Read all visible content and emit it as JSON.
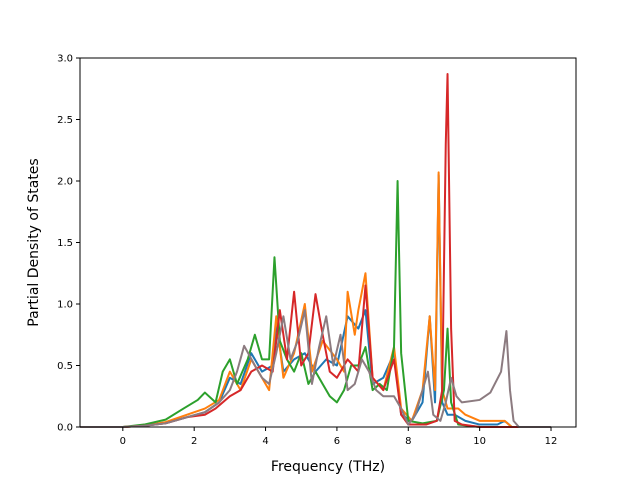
{
  "chart_data": {
    "type": "line",
    "xlabel": "Frequency (THz)",
    "ylabel": "Partial Density of States",
    "xlim": [
      -1.2,
      12.7
    ],
    "ylim": [
      0,
      3.0
    ],
    "xticks": [
      0,
      2,
      4,
      6,
      8,
      10,
      12
    ],
    "yticks": [
      0.0,
      0.5,
      1.0,
      1.5,
      2.0,
      2.5,
      3.0
    ],
    "xtick_labels": [
      "0",
      "2",
      "4",
      "6",
      "8",
      "10",
      "12"
    ],
    "ytick_labels": [
      "0.0",
      "0.5",
      "1.0",
      "1.5",
      "2.0",
      "2.5",
      "3.0"
    ],
    "grid": false,
    "series": [
      {
        "color": "#1f77b4",
        "points": [
          [
            -1.2,
            0
          ],
          [
            0,
            0
          ],
          [
            0.6,
            0.01
          ],
          [
            1.2,
            0.03
          ],
          [
            1.8,
            0.08
          ],
          [
            2.3,
            0.12
          ],
          [
            2.7,
            0.2
          ],
          [
            3.0,
            0.4
          ],
          [
            3.3,
            0.35
          ],
          [
            3.6,
            0.6
          ],
          [
            3.9,
            0.45
          ],
          [
            4.2,
            0.5
          ],
          [
            4.3,
            0.85
          ],
          [
            4.5,
            0.45
          ],
          [
            4.8,
            0.55
          ],
          [
            5.1,
            0.6
          ],
          [
            5.4,
            0.45
          ],
          [
            5.7,
            0.55
          ],
          [
            6.0,
            0.5
          ],
          [
            6.3,
            0.9
          ],
          [
            6.6,
            0.8
          ],
          [
            6.8,
            0.95
          ],
          [
            7.0,
            0.35
          ],
          [
            7.3,
            0.4
          ],
          [
            7.6,
            0.6
          ],
          [
            7.8,
            0.1
          ],
          [
            8.1,
            0.05
          ],
          [
            8.4,
            0.2
          ],
          [
            8.6,
            0.9
          ],
          [
            8.75,
            0.2
          ],
          [
            8.85,
            2.05
          ],
          [
            8.95,
            0.2
          ],
          [
            9.1,
            0.1
          ],
          [
            9.3,
            0.1
          ],
          [
            9.6,
            0.05
          ],
          [
            10.0,
            0.02
          ],
          [
            10.5,
            0.02
          ],
          [
            10.7,
            0.05
          ],
          [
            10.9,
            0
          ],
          [
            12.0,
            0
          ]
        ]
      },
      {
        "color": "#ff7f0e",
        "points": [
          [
            -1.2,
            0
          ],
          [
            0,
            0
          ],
          [
            0.6,
            0.01
          ],
          [
            1.2,
            0.04
          ],
          [
            1.8,
            0.1
          ],
          [
            2.3,
            0.15
          ],
          [
            2.7,
            0.22
          ],
          [
            3.0,
            0.45
          ],
          [
            3.3,
            0.3
          ],
          [
            3.6,
            0.55
          ],
          [
            3.8,
            0.45
          ],
          [
            4.1,
            0.3
          ],
          [
            4.3,
            0.9
          ],
          [
            4.5,
            0.4
          ],
          [
            4.8,
            0.6
          ],
          [
            5.1,
            1.0
          ],
          [
            5.3,
            0.45
          ],
          [
            5.6,
            0.7
          ],
          [
            6.0,
            0.55
          ],
          [
            6.2,
            0.45
          ],
          [
            6.3,
            1.1
          ],
          [
            6.5,
            0.75
          ],
          [
            6.6,
            0.95
          ],
          [
            6.8,
            1.25
          ],
          [
            7.0,
            0.4
          ],
          [
            7.3,
            0.3
          ],
          [
            7.6,
            0.65
          ],
          [
            7.8,
            0.15
          ],
          [
            8.1,
            0.05
          ],
          [
            8.4,
            0.3
          ],
          [
            8.6,
            0.9
          ],
          [
            8.75,
            0.3
          ],
          [
            8.85,
            2.07
          ],
          [
            8.95,
            0.3
          ],
          [
            9.1,
            0.15
          ],
          [
            9.4,
            0.15
          ],
          [
            9.6,
            0.1
          ],
          [
            10.0,
            0.05
          ],
          [
            10.5,
            0.05
          ],
          [
            10.7,
            0.05
          ],
          [
            10.9,
            0
          ],
          [
            12.0,
            0
          ]
        ]
      },
      {
        "color": "#2ca02c",
        "points": [
          [
            -1.2,
            0
          ],
          [
            0,
            0
          ],
          [
            0.6,
            0.02
          ],
          [
            1.2,
            0.06
          ],
          [
            1.7,
            0.15
          ],
          [
            2.1,
            0.22
          ],
          [
            2.3,
            0.28
          ],
          [
            2.6,
            0.2
          ],
          [
            2.8,
            0.45
          ],
          [
            3.0,
            0.55
          ],
          [
            3.2,
            0.35
          ],
          [
            3.5,
            0.55
          ],
          [
            3.7,
            0.75
          ],
          [
            3.9,
            0.55
          ],
          [
            4.1,
            0.55
          ],
          [
            4.25,
            1.38
          ],
          [
            4.4,
            0.7
          ],
          [
            4.6,
            0.55
          ],
          [
            4.8,
            0.45
          ],
          [
            5.0,
            0.6
          ],
          [
            5.2,
            0.35
          ],
          [
            5.4,
            0.45
          ],
          [
            5.6,
            0.35
          ],
          [
            5.8,
            0.25
          ],
          [
            6.0,
            0.2
          ],
          [
            6.2,
            0.3
          ],
          [
            6.4,
            0.5
          ],
          [
            6.6,
            0.5
          ],
          [
            6.8,
            0.65
          ],
          [
            7.0,
            0.3
          ],
          [
            7.2,
            0.35
          ],
          [
            7.4,
            0.3
          ],
          [
            7.6,
            0.65
          ],
          [
            7.7,
            2.0
          ],
          [
            7.8,
            0.6
          ],
          [
            8.0,
            0.05
          ],
          [
            8.4,
            0.03
          ],
          [
            8.8,
            0.05
          ],
          [
            9.0,
            0.3
          ],
          [
            9.1,
            0.8
          ],
          [
            9.2,
            0.2
          ],
          [
            9.4,
            0.02
          ],
          [
            10.0,
            0
          ],
          [
            12.0,
            0
          ]
        ]
      },
      {
        "color": "#d62728",
        "points": [
          [
            -1.2,
            0
          ],
          [
            0,
            0
          ],
          [
            0.6,
            0.01
          ],
          [
            1.2,
            0.03
          ],
          [
            1.8,
            0.08
          ],
          [
            2.3,
            0.1
          ],
          [
            2.6,
            0.15
          ],
          [
            3.0,
            0.25
          ],
          [
            3.3,
            0.3
          ],
          [
            3.6,
            0.45
          ],
          [
            3.9,
            0.5
          ],
          [
            4.2,
            0.45
          ],
          [
            4.4,
            0.95
          ],
          [
            4.6,
            0.55
          ],
          [
            4.8,
            1.1
          ],
          [
            5.0,
            0.5
          ],
          [
            5.2,
            0.6
          ],
          [
            5.4,
            1.08
          ],
          [
            5.6,
            0.75
          ],
          [
            5.8,
            0.45
          ],
          [
            6.0,
            0.4
          ],
          [
            6.3,
            0.55
          ],
          [
            6.6,
            0.45
          ],
          [
            6.8,
            1.15
          ],
          [
            7.0,
            0.4
          ],
          [
            7.3,
            0.3
          ],
          [
            7.6,
            0.55
          ],
          [
            7.8,
            0.1
          ],
          [
            8.0,
            0.02
          ],
          [
            8.5,
            0.02
          ],
          [
            8.8,
            0.05
          ],
          [
            8.95,
            0.3
          ],
          [
            9.05,
            2.3
          ],
          [
            9.1,
            2.87
          ],
          [
            9.2,
            0.8
          ],
          [
            9.3,
            0.05
          ],
          [
            9.5,
            0.02
          ],
          [
            10.0,
            0
          ],
          [
            12.0,
            0
          ]
        ]
      },
      {
        "color": "#8c7b80",
        "points": [
          [
            -1.2,
            0
          ],
          [
            0,
            0
          ],
          [
            0.6,
            0.01
          ],
          [
            1.2,
            0.03
          ],
          [
            1.8,
            0.08
          ],
          [
            2.3,
            0.12
          ],
          [
            2.7,
            0.2
          ],
          [
            3.0,
            0.3
          ],
          [
            3.2,
            0.45
          ],
          [
            3.4,
            0.66
          ],
          [
            3.7,
            0.5
          ],
          [
            3.9,
            0.4
          ],
          [
            4.1,
            0.35
          ],
          [
            4.3,
            0.6
          ],
          [
            4.5,
            0.9
          ],
          [
            4.7,
            0.55
          ],
          [
            4.9,
            0.7
          ],
          [
            5.1,
            0.95
          ],
          [
            5.3,
            0.35
          ],
          [
            5.5,
            0.65
          ],
          [
            5.7,
            0.9
          ],
          [
            5.9,
            0.5
          ],
          [
            6.1,
            0.75
          ],
          [
            6.3,
            0.3
          ],
          [
            6.5,
            0.35
          ],
          [
            6.7,
            0.55
          ],
          [
            6.9,
            0.45
          ],
          [
            7.1,
            0.3
          ],
          [
            7.3,
            0.25
          ],
          [
            7.6,
            0.25
          ],
          [
            7.8,
            0.15
          ],
          [
            8.0,
            0.02
          ],
          [
            8.2,
            0.1
          ],
          [
            8.4,
            0.3
          ],
          [
            8.55,
            0.45
          ],
          [
            8.7,
            0.1
          ],
          [
            8.9,
            0.05
          ],
          [
            9.05,
            0.2
          ],
          [
            9.2,
            0.4
          ],
          [
            9.35,
            0.25
          ],
          [
            9.5,
            0.2
          ],
          [
            10.0,
            0.22
          ],
          [
            10.3,
            0.28
          ],
          [
            10.6,
            0.45
          ],
          [
            10.75,
            0.78
          ],
          [
            10.85,
            0.3
          ],
          [
            10.95,
            0.05
          ],
          [
            11.1,
            0
          ],
          [
            12.0,
            0
          ]
        ]
      }
    ]
  }
}
